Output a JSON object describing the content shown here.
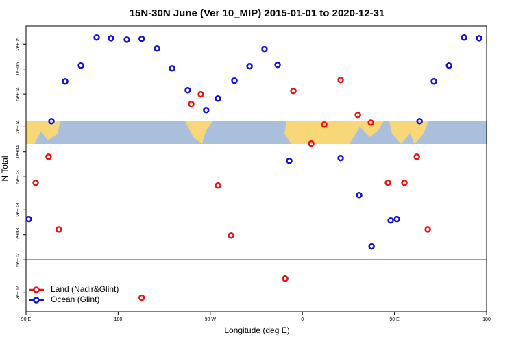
{
  "chart_data": {
    "type": "scatter",
    "title": "15N-30N June (Ver 10_MIP)   2015-01-01 to 2020-12-31",
    "x_label": "Longitude (deg E)",
    "y_label": "N Total",
    "xlim": [
      90,
      540
    ],
    "ylim": [
      118,
      330000
    ],
    "ylog": true,
    "hlines": [
      500
    ],
    "legend": "bottom-left",
    "xticks": [
      {
        "value": 90,
        "label": "90 E"
      },
      {
        "value": 180,
        "label": "180"
      },
      {
        "value": 270,
        "label": "90 W"
      },
      {
        "value": 360,
        "label": "0"
      },
      {
        "value": 450,
        "label": "90 E"
      },
      {
        "value": 540,
        "label": "180"
      }
    ],
    "yticks": [
      {
        "value": 200,
        "label": "2e+02"
      },
      {
        "value": 500,
        "label": "5e+02"
      },
      {
        "value": 1000,
        "label": "1e+03"
      },
      {
        "value": 2000,
        "label": "2e+03"
      },
      {
        "value": 5000,
        "label": "5e+03"
      },
      {
        "value": 10000,
        "label": "1e+04"
      },
      {
        "value": 20000,
        "label": "2e+04"
      },
      {
        "value": 50000,
        "label": "5e+04"
      },
      {
        "value": 100000,
        "label": "1e+05"
      },
      {
        "value": 200000,
        "label": "2e+05"
      }
    ],
    "series": [
      {
        "name": "Land (Nadir&Glint)",
        "color": "#ee1111",
        "x": [
          99.4,
          112,
          122,
          203,
          251.4,
          260.8,
          277.5,
          290.3,
          343.2,
          351.2,
          368.6,
          381.4,
          397.4,
          414.2,
          426.9,
          443.6,
          459.7,
          471.8,
          482.5
        ],
        "values": [
          4250,
          8750,
          1160,
          174,
          37900,
          49500,
          3940,
          980,
          296,
          54400,
          12600,
          21400,
          73800,
          27900,
          22600,
          4250,
          4250,
          8750,
          1160
        ]
      },
      {
        "name": "Ocean (Glint)",
        "color": "#1111dd",
        "x": [
          92.7,
          114.8,
          128.2,
          143.6,
          159,
          173,
          188.5,
          203,
          218,
          232.7,
          248,
          266,
          277.5,
          293.6,
          308.4,
          323,
          335.8,
          347.2,
          397.4,
          415.5,
          427.6,
          446.3,
          452.4,
          474.5,
          488.5,
          503.3,
          518,
          532.7
        ],
        "values": [
          1550,
          23500,
          71000,
          110000,
          240000,
          235000,
          226000,
          231000,
          177000,
          102000,
          55400,
          31900,
          44100,
          72400,
          108000,
          174000,
          112000,
          7810,
          8430,
          3010,
          724,
          1490,
          1550,
          23500,
          71000,
          110000,
          240000,
          235000
        ]
      }
    ]
  }
}
